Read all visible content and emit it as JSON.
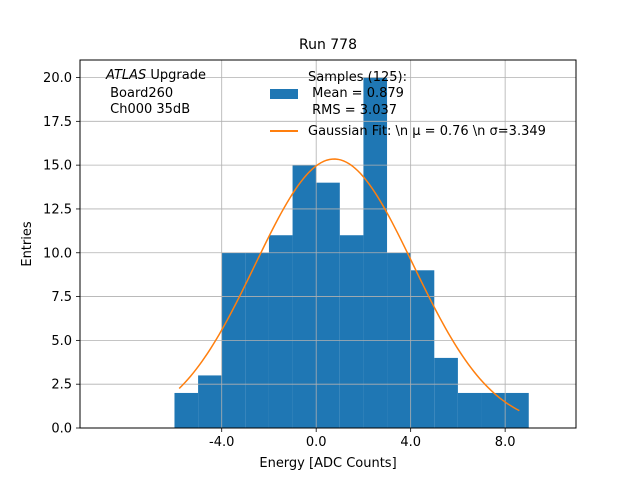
{
  "chart_data": {
    "type": "bar",
    "title": "Run 778",
    "xlabel": "Energy [ADC Counts]",
    "ylabel": "Entries",
    "xlim": [
      -10.0,
      11.0
    ],
    "ylim": [
      0,
      21.0
    ],
    "grid": true,
    "xticks": [
      -4.0,
      0.0,
      4.0,
      8.0
    ],
    "xtick_labels": [
      "-4.0",
      "0.0",
      "4.0",
      "8.0"
    ],
    "yticks": [
      0,
      2.5,
      5,
      7.5,
      10,
      12.5,
      15,
      17.5,
      20
    ],
    "ytick_labels": [
      "0.0",
      "2.5",
      "5.0",
      "7.5",
      "10.0",
      "12.5",
      "15.0",
      "17.5",
      "20.0"
    ],
    "histogram": {
      "bin_edges": [
        -6,
        -5,
        -4,
        -3,
        -2,
        -1,
        0,
        1,
        2,
        3,
        4,
        5,
        6,
        7,
        8,
        9
      ],
      "counts": [
        2,
        3,
        10,
        10,
        11,
        15,
        14,
        11,
        20,
        10,
        9,
        4,
        2,
        2,
        2
      ],
      "color": "#1f77b4"
    },
    "fit": {
      "name": "Gaussian Fit: \\n $\\mu$ = 0.76 \\n $\\sigma$=3.349",
      "mu": 0.76,
      "sigma": 3.349,
      "amplitude": 15.35,
      "x_range": [
        -5.8,
        8.6
      ],
      "color": "#ff7f0e"
    },
    "legend": {
      "placement": "top-center",
      "entries": [
        {
          "lines": [
            "Samples (125):",
            " Mean = 0.879",
            " RMS = 3.037"
          ],
          "kind": "patch",
          "color": "#1f77b4"
        },
        {
          "lines": [
            "Gaussian Fit: \\n μ = 0.76 \\n σ=3.349"
          ],
          "kind": "line",
          "color": "#ff7f0e"
        }
      ]
    },
    "annotation": {
      "lines": [
        "ATLAS Upgrade",
        " Board260",
        " Ch000 35dB"
      ],
      "italic_word": "ATLAS"
    }
  }
}
